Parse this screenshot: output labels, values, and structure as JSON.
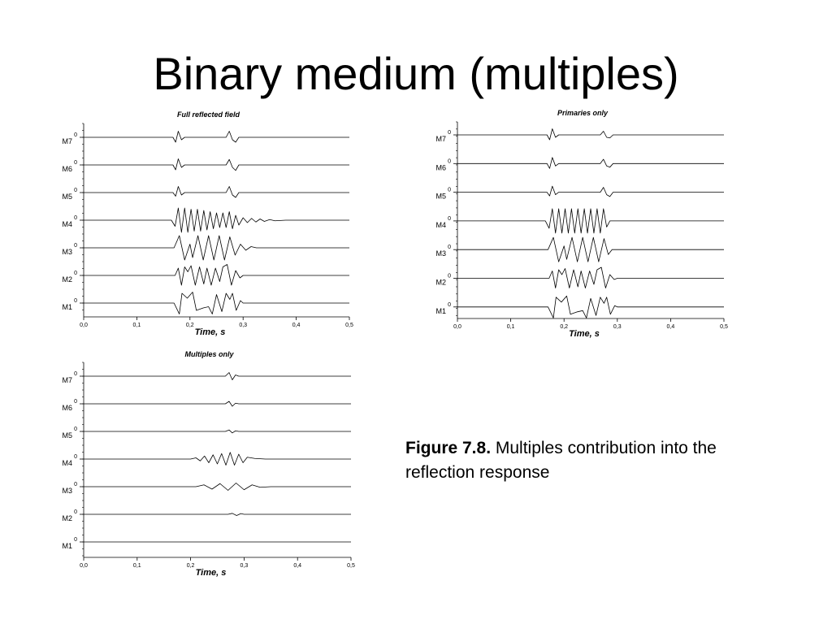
{
  "title": "Binary medium (multiples)",
  "caption": {
    "label": "Figure 7.8.",
    "text": "Multiples contribution into the reflection response"
  },
  "chart_data": [
    {
      "type": "line",
      "title": "Full reflected field",
      "x_label": "Time, s",
      "color": "#000000",
      "xlim": [
        0,
        0.5
      ],
      "xticks": [
        {
          "value": 0,
          "label": "0,0"
        },
        {
          "value": 0.1,
          "label": "0,1"
        },
        {
          "value": 0.2,
          "label": "0,2"
        },
        {
          "value": 0.3,
          "label": "0,3"
        },
        {
          "value": 0.4,
          "label": "0,4"
        },
        {
          "value": 0.5,
          "label": "0,5"
        }
      ],
      "yticks": [
        0
      ],
      "series": [
        {
          "name": "M7",
          "x": [
            0,
            0.168,
            0.173,
            0.178,
            0.184,
            0.19,
            0.268,
            0.274,
            0.28,
            0.286,
            0.292,
            0.5
          ],
          "values": [
            0,
            0,
            -0.4,
            0.5,
            -0.2,
            0,
            0,
            0.5,
            -0.2,
            -0.4,
            0,
            0
          ]
        },
        {
          "name": "M6",
          "x": [
            0,
            0.168,
            0.173,
            0.178,
            0.184,
            0.19,
            0.268,
            0.274,
            0.28,
            0.286,
            0.292,
            0.5
          ],
          "values": [
            0,
            0,
            -0.4,
            0.5,
            -0.2,
            0,
            0,
            0.45,
            -0.2,
            -0.45,
            0,
            0
          ]
        },
        {
          "name": "M5",
          "x": [
            0,
            0.168,
            0.173,
            0.178,
            0.184,
            0.19,
            0.268,
            0.274,
            0.28,
            0.286,
            0.292,
            0.5
          ],
          "values": [
            0,
            0,
            -0.3,
            0.5,
            -0.2,
            0,
            0,
            0.5,
            -0.2,
            -0.4,
            0,
            0
          ]
        },
        {
          "name": "M4",
          "x": [
            0,
            0.165,
            0.172,
            0.178,
            0.184,
            0.19,
            0.196,
            0.202,
            0.208,
            0.214,
            0.22,
            0.226,
            0.232,
            0.238,
            0.244,
            0.25,
            0.256,
            0.262,
            0.268,
            0.274,
            0.28,
            0.286,
            0.292,
            0.3,
            0.308,
            0.316,
            0.324,
            0.332,
            0.34,
            0.35,
            0.36,
            0.38,
            0.5
          ],
          "values": [
            0,
            0,
            -0.5,
            1,
            -1,
            1,
            -1,
            0.9,
            -0.9,
            0.9,
            -0.9,
            0.8,
            -0.8,
            0.7,
            -0.7,
            0.6,
            -0.6,
            0.6,
            -0.6,
            0.7,
            -0.7,
            0.4,
            -0.4,
            0.2,
            -0.2,
            0.15,
            -0.15,
            0.1,
            -0.1,
            0.05,
            -0.05,
            0,
            0
          ]
        },
        {
          "name": "M3",
          "x": [
            0,
            0.17,
            0.18,
            0.19,
            0.2,
            0.205,
            0.215,
            0.225,
            0.235,
            0.245,
            0.255,
            0.265,
            0.275,
            0.285,
            0.295,
            0.305,
            0.315,
            0.325,
            0.5
          ],
          "values": [
            0,
            0,
            1,
            -1,
            0.3,
            -0.8,
            1,
            -1,
            1,
            -1,
            1,
            -1,
            0.9,
            -0.6,
            0.3,
            -0.2,
            0.1,
            0,
            0
          ]
        },
        {
          "name": "M2",
          "x": [
            0,
            0.172,
            0.178,
            0.184,
            0.19,
            0.196,
            0.202,
            0.21,
            0.218,
            0.226,
            0.232,
            0.24,
            0.248,
            0.256,
            0.262,
            0.27,
            0.278,
            0.286,
            0.294,
            0.3,
            0.5
          ],
          "values": [
            0,
            0,
            0.6,
            -0.8,
            0.7,
            0.3,
            0.8,
            -0.8,
            0.7,
            -0.7,
            0.6,
            -0.8,
            0.6,
            -0.5,
            0.7,
            0.9,
            -0.8,
            0.4,
            -0.2,
            0,
            0
          ]
        },
        {
          "name": "M1",
          "x": [
            0,
            0.17,
            0.18,
            0.185,
            0.195,
            0.205,
            0.212,
            0.225,
            0.235,
            0.242,
            0.25,
            0.26,
            0.268,
            0.275,
            0.28,
            0.287,
            0.295,
            0.3,
            0.5
          ],
          "values": [
            0,
            0,
            -0.9,
            0.8,
            0.4,
            0.9,
            -0.6,
            -0.4,
            -0.3,
            -0.9,
            0.7,
            -0.7,
            0.8,
            0.3,
            0.8,
            -0.6,
            0.2,
            0,
            0
          ]
        }
      ]
    },
    {
      "type": "line",
      "title": "Primaries only",
      "x_label": "Time, s",
      "color": "#000000",
      "xlim": [
        0,
        0.5
      ],
      "xticks": [
        {
          "value": 0,
          "label": "0,0"
        },
        {
          "value": 0.1,
          "label": "0,1"
        },
        {
          "value": 0.2,
          "label": "0,2"
        },
        {
          "value": 0.3,
          "label": "0,3"
        },
        {
          "value": 0.4,
          "label": "0,4"
        },
        {
          "value": 0.5,
          "label": "0,5"
        }
      ],
      "yticks": [
        0
      ],
      "series": [
        {
          "name": "M7",
          "x": [
            0,
            0.168,
            0.173,
            0.178,
            0.184,
            0.19,
            0.268,
            0.274,
            0.28,
            0.286,
            0.292,
            0.5
          ],
          "values": [
            0,
            0,
            -0.4,
            0.5,
            -0.2,
            0,
            0,
            0.3,
            -0.2,
            -0.25,
            0,
            0
          ]
        },
        {
          "name": "M6",
          "x": [
            0,
            0.168,
            0.173,
            0.178,
            0.184,
            0.19,
            0.268,
            0.274,
            0.28,
            0.286,
            0.292,
            0.5
          ],
          "values": [
            0,
            0,
            -0.4,
            0.5,
            -0.2,
            0,
            0,
            0.35,
            -0.2,
            -0.3,
            0,
            0
          ]
        },
        {
          "name": "M5",
          "x": [
            0,
            0.168,
            0.173,
            0.178,
            0.184,
            0.19,
            0.268,
            0.274,
            0.28,
            0.286,
            0.292,
            0.5
          ],
          "values": [
            0,
            0,
            -0.3,
            0.5,
            -0.2,
            0,
            0,
            0.4,
            -0.2,
            -0.35,
            0,
            0
          ]
        },
        {
          "name": "M4",
          "x": [
            0,
            0.165,
            0.172,
            0.178,
            0.184,
            0.19,
            0.196,
            0.202,
            0.208,
            0.214,
            0.22,
            0.226,
            0.232,
            0.238,
            0.244,
            0.25,
            0.256,
            0.262,
            0.268,
            0.274,
            0.28,
            0.286,
            0.5
          ],
          "values": [
            0,
            0,
            -0.6,
            1,
            -1,
            1,
            -1,
            1,
            -1,
            1,
            -1,
            1,
            -1,
            1,
            -1,
            1,
            -1,
            1,
            -1,
            1,
            -0.5,
            0,
            0
          ]
        },
        {
          "name": "M3",
          "x": [
            0,
            0.17,
            0.18,
            0.19,
            0.2,
            0.205,
            0.215,
            0.225,
            0.235,
            0.245,
            0.255,
            0.265,
            0.275,
            0.283,
            0.29,
            0.5
          ],
          "values": [
            0,
            0,
            1,
            -1,
            0.3,
            -0.8,
            1,
            -1,
            1,
            -1,
            1,
            -1,
            0.9,
            -0.4,
            0,
            0
          ]
        },
        {
          "name": "M2",
          "x": [
            0,
            0.172,
            0.178,
            0.184,
            0.19,
            0.196,
            0.202,
            0.21,
            0.218,
            0.226,
            0.232,
            0.24,
            0.248,
            0.256,
            0.262,
            0.27,
            0.278,
            0.286,
            0.294,
            0.3,
            0.5
          ],
          "values": [
            0,
            0,
            0.6,
            -0.8,
            0.7,
            0.3,
            0.8,
            -0.8,
            0.7,
            -0.7,
            0.6,
            -0.8,
            0.6,
            -0.5,
            0.7,
            0.9,
            -0.8,
            0.3,
            -0.1,
            0,
            0
          ]
        },
        {
          "name": "M1",
          "x": [
            0,
            0.17,
            0.18,
            0.185,
            0.195,
            0.205,
            0.212,
            0.225,
            0.235,
            0.242,
            0.25,
            0.26,
            0.268,
            0.275,
            0.28,
            0.287,
            0.295,
            0.3,
            0.5
          ],
          "values": [
            0,
            0,
            -0.9,
            0.8,
            0.4,
            0.9,
            -0.6,
            -0.4,
            -0.3,
            -0.9,
            0.7,
            -0.7,
            0.8,
            0.3,
            0.8,
            -0.6,
            0.1,
            0,
            0
          ]
        }
      ]
    },
    {
      "type": "line",
      "title": "Multiples only",
      "x_label": "Time, s",
      "color": "#000000",
      "xlim": [
        0,
        0.5
      ],
      "xticks": [
        {
          "value": 0,
          "label": "0,0"
        },
        {
          "value": 0.1,
          "label": "0,1"
        },
        {
          "value": 0.2,
          "label": "0,2"
        },
        {
          "value": 0.3,
          "label": "0,3"
        },
        {
          "value": 0.4,
          "label": "0,4"
        },
        {
          "value": 0.5,
          "label": "0,5"
        }
      ],
      "yticks": [
        0
      ],
      "series": [
        {
          "name": "M7",
          "x": [
            0,
            0.265,
            0.272,
            0.278,
            0.284,
            0.29,
            0.5
          ],
          "values": [
            0,
            0,
            0.3,
            -0.3,
            0.1,
            0,
            0
          ]
        },
        {
          "name": "M6",
          "x": [
            0,
            0.265,
            0.272,
            0.278,
            0.284,
            0.29,
            0.5
          ],
          "values": [
            0,
            0,
            0.2,
            -0.2,
            0.05,
            0,
            0
          ]
        },
        {
          "name": "M5",
          "x": [
            0,
            0.265,
            0.272,
            0.278,
            0.284,
            0.29,
            0.5
          ],
          "values": [
            0,
            0,
            0.12,
            -0.12,
            0.05,
            0,
            0
          ]
        },
        {
          "name": "M4",
          "x": [
            0,
            0.2,
            0.21,
            0.218,
            0.226,
            0.234,
            0.242,
            0.25,
            0.258,
            0.266,
            0.274,
            0.282,
            0.29,
            0.298,
            0.306,
            0.32,
            0.34,
            0.5
          ],
          "values": [
            0,
            0,
            0.1,
            -0.15,
            0.25,
            -0.3,
            0.35,
            -0.4,
            0.45,
            -0.5,
            0.55,
            -0.5,
            0.4,
            -0.3,
            0.15,
            0.05,
            0,
            0
          ]
        },
        {
          "name": "M3",
          "x": [
            0,
            0.21,
            0.225,
            0.24,
            0.255,
            0.27,
            0.285,
            0.3,
            0.315,
            0.33,
            0.35,
            0.5
          ],
          "values": [
            0,
            0,
            0.15,
            -0.2,
            0.25,
            -0.3,
            0.3,
            -0.25,
            0.15,
            -0.05,
            0,
            0
          ]
        },
        {
          "name": "M2",
          "x": [
            0,
            0.27,
            0.278,
            0.286,
            0.294,
            0.3,
            0.5
          ],
          "values": [
            0,
            0,
            0.08,
            -0.1,
            0.06,
            0,
            0
          ]
        },
        {
          "name": "M1",
          "x": [
            0,
            0.5
          ],
          "values": [
            0,
            0
          ]
        }
      ]
    }
  ]
}
